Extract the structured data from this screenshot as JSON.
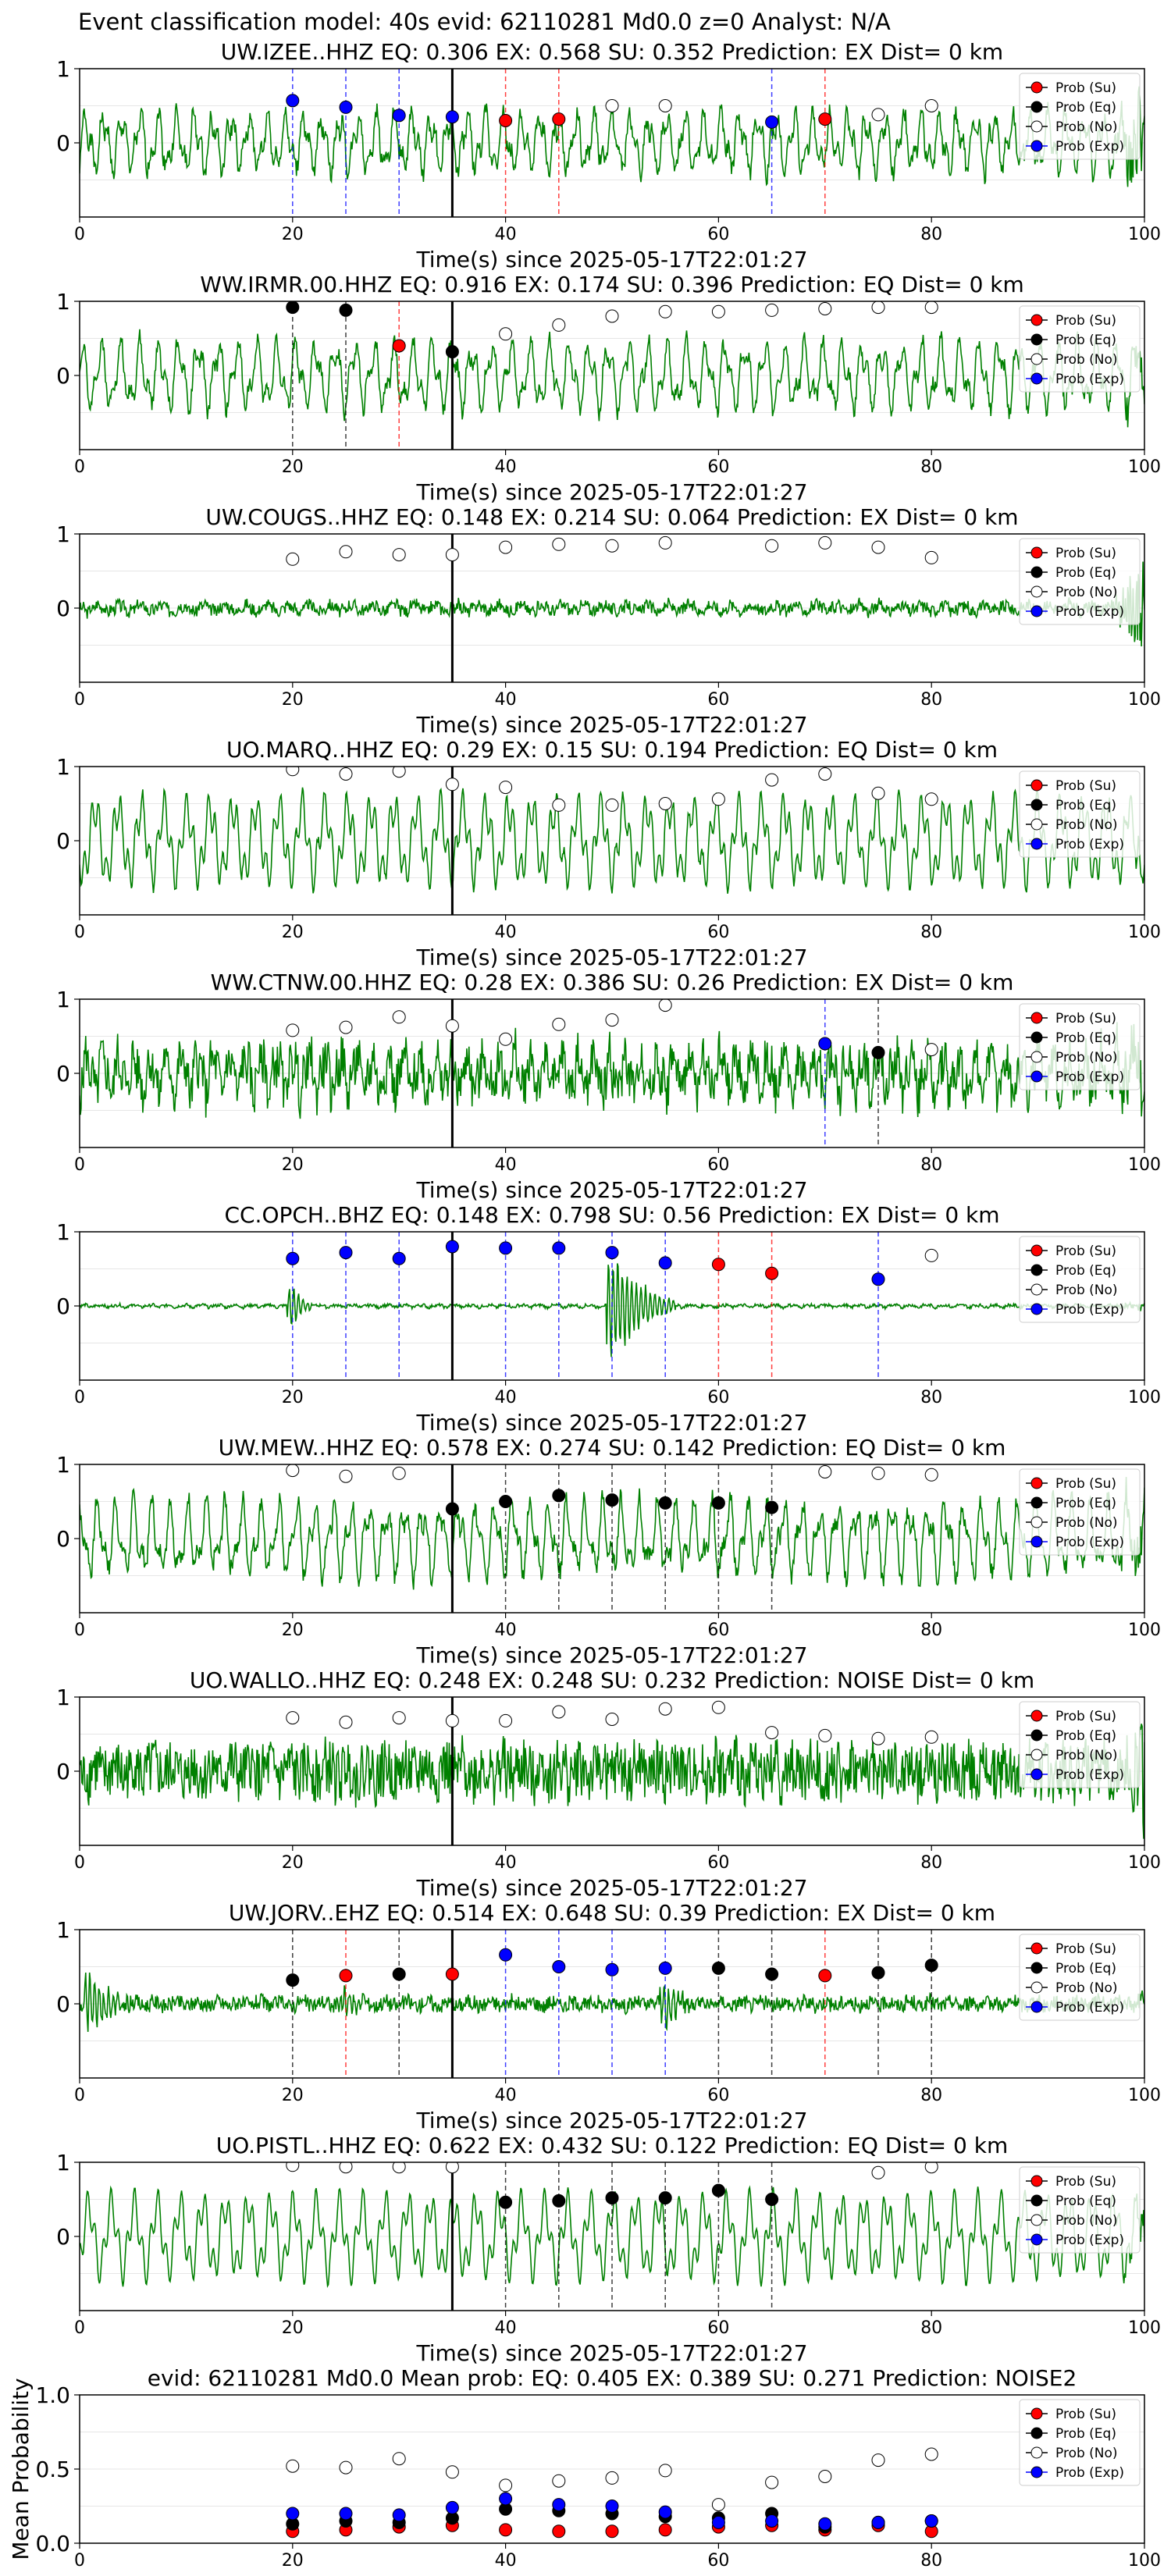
{
  "suptitle": "Event classification model: 40s evid: 62110281 Md0.0 z=0 Analyst: N/A",
  "colors": {
    "trace": "#008000",
    "su": "#ff0000",
    "eq": "#000000",
    "no": "#ffffff",
    "exp": "#0000ff",
    "pick_line": "#000000"
  },
  "legend": [
    "Prob (Su)",
    "Prob (Eq)",
    "Prob (No)",
    "Prob (Exp)"
  ],
  "chart_data": [
    {
      "type": "line",
      "title": "UW.IZEE..HHZ   EQ: 0.306  EX: 0.568  SU: 0.352   Prediction: EX    Dist= 0 km",
      "xlabel": "Time(s) since 2025-05-17T22:01:27",
      "ylabel": "",
      "xlim": [
        0,
        100
      ],
      "ylim": [
        -1,
        1
      ],
      "xticks": [
        0,
        20,
        40,
        60,
        80,
        100
      ],
      "yticks": [
        0,
        1
      ],
      "grid": "horizontal",
      "legend_position": "upper right",
      "pick_time": 35,
      "points": [
        {
          "x": 20,
          "y": 0.57,
          "cls": "exp"
        },
        {
          "x": 25,
          "y": 0.48,
          "cls": "exp"
        },
        {
          "x": 30,
          "y": 0.37,
          "cls": "exp"
        },
        {
          "x": 35,
          "y": 0.35,
          "cls": "exp"
        },
        {
          "x": 40,
          "y": 0.3,
          "cls": "su"
        },
        {
          "x": 45,
          "y": 0.32,
          "cls": "su"
        },
        {
          "x": 50,
          "y": 0.5,
          "cls": "no"
        },
        {
          "x": 55,
          "y": 0.5,
          "cls": "no"
        },
        {
          "x": 65,
          "y": 0.28,
          "cls": "exp"
        },
        {
          "x": 70,
          "y": 0.32,
          "cls": "su"
        },
        {
          "x": 75,
          "y": 0.38,
          "cls": "no"
        },
        {
          "x": 80,
          "y": 0.5,
          "cls": "no"
        }
      ],
      "waveform": {
        "amp": 0.42,
        "noise": 0.12,
        "tail": 0.9,
        "seed": 1
      }
    },
    {
      "type": "line",
      "title": "WW.IRMR.00.HHZ   EQ: 0.916  EX: 0.174  SU: 0.396   Prediction: EQ    Dist= 0 km",
      "xlabel": "Time(s) since 2025-05-17T22:01:27",
      "ylabel": "",
      "xlim": [
        0,
        100
      ],
      "ylim": [
        -1,
        1
      ],
      "xticks": [
        0,
        20,
        40,
        60,
        80,
        100
      ],
      "yticks": [
        0,
        1
      ],
      "grid": "horizontal",
      "legend_position": "upper right",
      "pick_time": 35,
      "points": [
        {
          "x": 20,
          "y": 0.92,
          "cls": "eq"
        },
        {
          "x": 25,
          "y": 0.88,
          "cls": "eq"
        },
        {
          "x": 30,
          "y": 0.4,
          "cls": "su"
        },
        {
          "x": 35,
          "y": 0.32,
          "cls": "eq"
        },
        {
          "x": 40,
          "y": 0.56,
          "cls": "no"
        },
        {
          "x": 45,
          "y": 0.68,
          "cls": "no"
        },
        {
          "x": 50,
          "y": 0.8,
          "cls": "no"
        },
        {
          "x": 55,
          "y": 0.86,
          "cls": "no"
        },
        {
          "x": 60,
          "y": 0.86,
          "cls": "no"
        },
        {
          "x": 65,
          "y": 0.88,
          "cls": "no"
        },
        {
          "x": 70,
          "y": 0.9,
          "cls": "no"
        },
        {
          "x": 75,
          "y": 0.92,
          "cls": "no"
        },
        {
          "x": 80,
          "y": 0.92,
          "cls": "no"
        }
      ],
      "waveform": {
        "amp": 0.48,
        "noise": 0.1,
        "tail": 0.3,
        "seed": 2
      }
    },
    {
      "type": "line",
      "title": "UW.COUGS..HHZ   EQ: 0.148  EX: 0.214  SU: 0.064   Prediction: EX    Dist= 0 km",
      "xlabel": "Time(s) since 2025-05-17T22:01:27",
      "ylabel": "",
      "xlim": [
        0,
        100
      ],
      "ylim": [
        -1,
        1
      ],
      "xticks": [
        0,
        20,
        40,
        60,
        80,
        100
      ],
      "yticks": [
        0,
        1
      ],
      "grid": "horizontal",
      "legend_position": "upper right",
      "pick_time": 35,
      "points": [
        {
          "x": 20,
          "y": 0.66,
          "cls": "no"
        },
        {
          "x": 25,
          "y": 0.76,
          "cls": "no"
        },
        {
          "x": 30,
          "y": 0.72,
          "cls": "no"
        },
        {
          "x": 35,
          "y": 0.72,
          "cls": "no"
        },
        {
          "x": 40,
          "y": 0.82,
          "cls": "no"
        },
        {
          "x": 45,
          "y": 0.86,
          "cls": "no"
        },
        {
          "x": 50,
          "y": 0.84,
          "cls": "no"
        },
        {
          "x": 55,
          "y": 0.88,
          "cls": "no"
        },
        {
          "x": 65,
          "y": 0.84,
          "cls": "no"
        },
        {
          "x": 70,
          "y": 0.88,
          "cls": "no"
        },
        {
          "x": 75,
          "y": 0.82,
          "cls": "no"
        },
        {
          "x": 80,
          "y": 0.68,
          "cls": "no"
        }
      ],
      "waveform": {
        "amp": 0.06,
        "noise": 0.08,
        "tail": 0.8,
        "seed": 3
      }
    },
    {
      "type": "line",
      "title": "UO.MARQ..HHZ   EQ: 0.29  EX: 0.15  SU: 0.194   Prediction: EQ    Dist= 0 km",
      "xlabel": "Time(s) since 2025-05-17T22:01:27",
      "ylabel": "",
      "xlim": [
        0,
        100
      ],
      "ylim": [
        -1,
        1
      ],
      "xticks": [
        0,
        20,
        40,
        60,
        80,
        100
      ],
      "yticks": [
        0,
        1
      ],
      "grid": "horizontal",
      "legend_position": "upper right",
      "pick_time": 35,
      "points": [
        {
          "x": 20,
          "y": 0.96,
          "cls": "no"
        },
        {
          "x": 25,
          "y": 0.9,
          "cls": "no"
        },
        {
          "x": 30,
          "y": 0.94,
          "cls": "no"
        },
        {
          "x": 35,
          "y": 0.76,
          "cls": "no"
        },
        {
          "x": 40,
          "y": 0.72,
          "cls": "no"
        },
        {
          "x": 45,
          "y": 0.48,
          "cls": "no"
        },
        {
          "x": 50,
          "y": 0.48,
          "cls": "no"
        },
        {
          "x": 55,
          "y": 0.5,
          "cls": "no"
        },
        {
          "x": 60,
          "y": 0.56,
          "cls": "no"
        },
        {
          "x": 65,
          "y": 0.82,
          "cls": "no"
        },
        {
          "x": 70,
          "y": 0.9,
          "cls": "no"
        },
        {
          "x": 75,
          "y": 0.64,
          "cls": "no"
        },
        {
          "x": 80,
          "y": 0.56,
          "cls": "no"
        }
      ],
      "waveform": {
        "amp": 0.62,
        "noise": 0.05,
        "tail": 0.2,
        "seed": 4
      }
    },
    {
      "type": "line",
      "title": "WW.CTNW.00.HHZ   EQ: 0.28  EX: 0.386  SU: 0.26   Prediction: EX    Dist= 0 km",
      "xlabel": "Time(s) since 2025-05-17T22:01:27",
      "ylabel": "",
      "xlim": [
        0,
        100
      ],
      "ylim": [
        -1,
        1
      ],
      "xticks": [
        0,
        20,
        40,
        60,
        80,
        100
      ],
      "yticks": [
        0,
        1
      ],
      "grid": "horizontal",
      "legend_position": "upper right",
      "pick_time": 35,
      "points": [
        {
          "x": 20,
          "y": 0.58,
          "cls": "no"
        },
        {
          "x": 25,
          "y": 0.62,
          "cls": "no"
        },
        {
          "x": 30,
          "y": 0.76,
          "cls": "no"
        },
        {
          "x": 35,
          "y": 0.64,
          "cls": "no"
        },
        {
          "x": 40,
          "y": 0.46,
          "cls": "no"
        },
        {
          "x": 45,
          "y": 0.66,
          "cls": "no"
        },
        {
          "x": 50,
          "y": 0.72,
          "cls": "no"
        },
        {
          "x": 55,
          "y": 0.92,
          "cls": "no"
        },
        {
          "x": 70,
          "y": 0.4,
          "cls": "exp"
        },
        {
          "x": 75,
          "y": 0.28,
          "cls": "eq"
        },
        {
          "x": 80,
          "y": 0.32,
          "cls": "no"
        }
      ],
      "waveform": {
        "amp": 0.3,
        "noise": 0.3,
        "tail": 0.5,
        "seed": 5
      }
    },
    {
      "type": "line",
      "title": "CC.OPCH..BHZ   EQ: 0.148  EX: 0.798  SU: 0.56   Prediction: EX    Dist= 0 km",
      "xlabel": "Time(s) since 2025-05-17T22:01:27",
      "ylabel": "",
      "xlim": [
        0,
        100
      ],
      "ylim": [
        -1,
        1
      ],
      "xticks": [
        0,
        20,
        40,
        60,
        80,
        100
      ],
      "yticks": [
        0,
        1
      ],
      "grid": "horizontal",
      "legend_position": "upper right",
      "pick_time": 35,
      "points": [
        {
          "x": 20,
          "y": 0.64,
          "cls": "exp"
        },
        {
          "x": 25,
          "y": 0.72,
          "cls": "exp"
        },
        {
          "x": 30,
          "y": 0.64,
          "cls": "exp"
        },
        {
          "x": 35,
          "y": 0.8,
          "cls": "exp"
        },
        {
          "x": 40,
          "y": 0.78,
          "cls": "exp"
        },
        {
          "x": 45,
          "y": 0.78,
          "cls": "exp"
        },
        {
          "x": 50,
          "y": 0.72,
          "cls": "exp"
        },
        {
          "x": 55,
          "y": 0.58,
          "cls": "exp"
        },
        {
          "x": 60,
          "y": 0.56,
          "cls": "su"
        },
        {
          "x": 65,
          "y": 0.44,
          "cls": "su"
        },
        {
          "x": 75,
          "y": 0.36,
          "cls": "exp"
        },
        {
          "x": 80,
          "y": 0.68,
          "cls": "no"
        }
      ],
      "waveform": {
        "amp": 0.02,
        "noise": 0.02,
        "tail": 0.05,
        "seed": 6,
        "burst": [
          [
            20,
            0.35,
            2
          ],
          [
            50,
            0.9,
            6
          ]
        ]
      }
    },
    {
      "type": "line",
      "title": "UW.MEW..HHZ   EQ: 0.578  EX: 0.274  SU: 0.142   Prediction: EQ    Dist= 0 km",
      "xlabel": "Time(s) since 2025-05-17T22:01:27",
      "ylabel": "",
      "xlim": [
        0,
        100
      ],
      "ylim": [
        -1,
        1
      ],
      "xticks": [
        0,
        20,
        40,
        60,
        80,
        100
      ],
      "yticks": [
        0,
        1
      ],
      "grid": "horizontal",
      "legend_position": "upper right",
      "pick_time": 35,
      "points": [
        {
          "x": 20,
          "y": 0.92,
          "cls": "no"
        },
        {
          "x": 25,
          "y": 0.84,
          "cls": "no"
        },
        {
          "x": 30,
          "y": 0.88,
          "cls": "no"
        },
        {
          "x": 35,
          "y": 0.4,
          "cls": "eq"
        },
        {
          "x": 40,
          "y": 0.5,
          "cls": "eq"
        },
        {
          "x": 45,
          "y": 0.58,
          "cls": "eq"
        },
        {
          "x": 50,
          "y": 0.52,
          "cls": "eq"
        },
        {
          "x": 55,
          "y": 0.48,
          "cls": "eq"
        },
        {
          "x": 60,
          "y": 0.48,
          "cls": "eq"
        },
        {
          "x": 65,
          "y": 0.42,
          "cls": "eq"
        },
        {
          "x": 70,
          "y": 0.9,
          "cls": "no"
        },
        {
          "x": 75,
          "y": 0.88,
          "cls": "no"
        },
        {
          "x": 80,
          "y": 0.86,
          "cls": "no"
        }
      ],
      "waveform": {
        "amp": 0.52,
        "noise": 0.12,
        "tail": 0.4,
        "seed": 7
      }
    },
    {
      "type": "line",
      "title": "UO.WALLO..HHZ   EQ: 0.248  EX: 0.248  SU: 0.232   Prediction: NOISE    Dist= 0 km",
      "xlabel": "Time(s) since 2025-05-17T22:01:27",
      "ylabel": "",
      "xlim": [
        0,
        100
      ],
      "ylim": [
        -1,
        1
      ],
      "xticks": [
        0,
        20,
        40,
        60,
        80,
        100
      ],
      "yticks": [
        0,
        1
      ],
      "grid": "horizontal",
      "legend_position": "upper right",
      "pick_time": 35,
      "points": [
        {
          "x": 20,
          "y": 0.72,
          "cls": "no"
        },
        {
          "x": 25,
          "y": 0.66,
          "cls": "no"
        },
        {
          "x": 30,
          "y": 0.72,
          "cls": "no"
        },
        {
          "x": 35,
          "y": 0.68,
          "cls": "no"
        },
        {
          "x": 40,
          "y": 0.68,
          "cls": "no"
        },
        {
          "x": 45,
          "y": 0.8,
          "cls": "no"
        },
        {
          "x": 50,
          "y": 0.7,
          "cls": "no"
        },
        {
          "x": 55,
          "y": 0.84,
          "cls": "no"
        },
        {
          "x": 60,
          "y": 0.86,
          "cls": "no"
        },
        {
          "x": 65,
          "y": 0.52,
          "cls": "no"
        },
        {
          "x": 70,
          "y": 0.48,
          "cls": "no"
        },
        {
          "x": 75,
          "y": 0.44,
          "cls": "no"
        },
        {
          "x": 80,
          "y": 0.46,
          "cls": "no"
        }
      ],
      "waveform": {
        "amp": 0.12,
        "noise": 0.38,
        "tail": 0.9,
        "seed": 8
      }
    },
    {
      "type": "line",
      "title": "UW.JORV..EHZ   EQ: 0.514  EX: 0.648  SU: 0.39   Prediction: EX    Dist= 0 km",
      "xlabel": "Time(s) since 2025-05-17T22:01:27",
      "ylabel": "",
      "xlim": [
        0,
        100
      ],
      "ylim": [
        -1,
        1
      ],
      "xticks": [
        0,
        20,
        40,
        60,
        80,
        100
      ],
      "yticks": [
        0,
        1
      ],
      "grid": "horizontal",
      "legend_position": "upper right",
      "pick_time": 35,
      "points": [
        {
          "x": 20,
          "y": 0.32,
          "cls": "eq"
        },
        {
          "x": 25,
          "y": 0.38,
          "cls": "su"
        },
        {
          "x": 30,
          "y": 0.4,
          "cls": "eq"
        },
        {
          "x": 35,
          "y": 0.4,
          "cls": "su"
        },
        {
          "x": 40,
          "y": 0.66,
          "cls": "exp"
        },
        {
          "x": 45,
          "y": 0.5,
          "cls": "exp"
        },
        {
          "x": 50,
          "y": 0.46,
          "cls": "exp"
        },
        {
          "x": 55,
          "y": 0.48,
          "cls": "exp"
        },
        {
          "x": 60,
          "y": 0.48,
          "cls": "eq"
        },
        {
          "x": 65,
          "y": 0.4,
          "cls": "eq"
        },
        {
          "x": 70,
          "y": 0.38,
          "cls": "su"
        },
        {
          "x": 75,
          "y": 0.42,
          "cls": "eq"
        },
        {
          "x": 80,
          "y": 0.52,
          "cls": "eq"
        }
      ],
      "waveform": {
        "amp": 0.04,
        "noise": 0.1,
        "tail": 0.1,
        "seed": 9,
        "burst": [
          [
            1,
            0.5,
            4
          ],
          [
            25,
            0.3,
            2
          ],
          [
            55,
            0.35,
            3
          ]
        ]
      }
    },
    {
      "type": "line",
      "title": "UO.PISTL..HHZ   EQ: 0.622  EX: 0.432  SU: 0.122   Prediction: EQ    Dist= 0 km",
      "xlabel": "Time(s) since 2025-05-17T22:01:27",
      "ylabel": "",
      "xlim": [
        0,
        100
      ],
      "ylim": [
        -1,
        1
      ],
      "xticks": [
        0,
        20,
        40,
        60,
        80,
        100
      ],
      "yticks": [
        0,
        1
      ],
      "grid": "horizontal",
      "legend_position": "upper right",
      "pick_time": 35,
      "points": [
        {
          "x": 20,
          "y": 0.96,
          "cls": "no"
        },
        {
          "x": 25,
          "y": 0.94,
          "cls": "no"
        },
        {
          "x": 30,
          "y": 0.94,
          "cls": "no"
        },
        {
          "x": 35,
          "y": 0.94,
          "cls": "no"
        },
        {
          "x": 40,
          "y": 0.46,
          "cls": "eq"
        },
        {
          "x": 45,
          "y": 0.48,
          "cls": "eq"
        },
        {
          "x": 50,
          "y": 0.52,
          "cls": "eq"
        },
        {
          "x": 55,
          "y": 0.52,
          "cls": "eq"
        },
        {
          "x": 60,
          "y": 0.62,
          "cls": "eq"
        },
        {
          "x": 65,
          "y": 0.5,
          "cls": "eq"
        },
        {
          "x": 75,
          "y": 0.86,
          "cls": "no"
        },
        {
          "x": 80,
          "y": 0.94,
          "cls": "no"
        }
      ],
      "waveform": {
        "amp": 0.6,
        "noise": 0.02,
        "tail": 0.2,
        "seed": 10
      }
    },
    {
      "type": "scatter",
      "title": "evid: 62110281  Md0.0   Mean prob:   EQ: 0.405  EX: 0.389  SU: 0.271   Prediction: NOISE2",
      "xlabel": "",
      "ylabel": "Mean Probability",
      "xlim": [
        0,
        100
      ],
      "ylim": [
        0,
        1
      ],
      "xticks": [
        0,
        20,
        40,
        60,
        80,
        100
      ],
      "yticks": [
        0.0,
        0.5,
        1.0
      ],
      "ytick_labels": [
        "0.0",
        "0.5",
        "1.0"
      ],
      "grid": "horizontal",
      "legend_position": "upper right",
      "x": [
        20,
        25,
        30,
        35,
        40,
        45,
        50,
        55,
        60,
        65,
        70,
        75,
        80
      ],
      "series": [
        {
          "name": "Prob (Su)",
          "cls": "su",
          "values": [
            0.08,
            0.09,
            0.11,
            0.12,
            0.09,
            0.08,
            0.08,
            0.09,
            0.11,
            0.12,
            0.09,
            0.12,
            0.08
          ]
        },
        {
          "name": "Prob (Eq)",
          "cls": "eq",
          "values": [
            0.13,
            0.15,
            0.14,
            0.17,
            0.23,
            0.22,
            0.2,
            0.18,
            0.17,
            0.2,
            0.11,
            0.14,
            0.15
          ]
        },
        {
          "name": "Prob (No)",
          "cls": "no",
          "values": [
            0.52,
            0.51,
            0.57,
            0.48,
            0.39,
            0.42,
            0.44,
            0.49,
            0.26,
            0.41,
            0.45,
            0.56,
            0.6
          ]
        },
        {
          "name": "Prob (Exp)",
          "cls": "exp",
          "values": [
            0.2,
            0.2,
            0.19,
            0.24,
            0.3,
            0.26,
            0.25,
            0.21,
            0.14,
            0.15,
            0.13,
            0.14,
            0.15
          ]
        }
      ]
    }
  ]
}
